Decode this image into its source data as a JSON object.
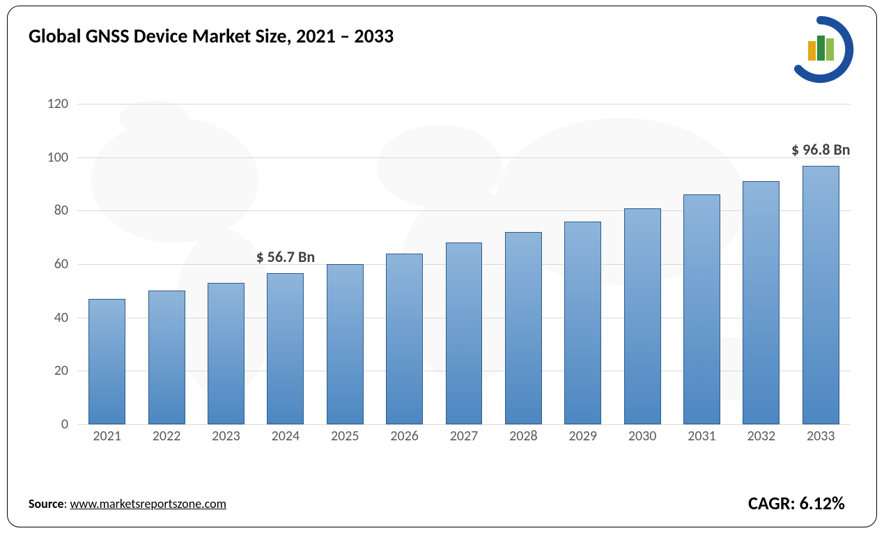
{
  "title": {
    "prefix": "Global ",
    "highlight": "GNSS Device",
    "suffix": " Market Size, 2021 – 2033",
    "fontsize": 28,
    "color": "#000000"
  },
  "logo": {
    "outer_ring_color": "#1b4f9c",
    "bar_colors": [
      "#e6a817",
      "#2e8b3d",
      "#8fbc4f"
    ]
  },
  "chart": {
    "type": "bar",
    "categories": [
      "2021",
      "2022",
      "2023",
      "2024",
      "2025",
      "2026",
      "2027",
      "2028",
      "2029",
      "2030",
      "2031",
      "2032",
      "2033"
    ],
    "values": [
      47,
      50,
      53,
      56.7,
      60,
      64,
      68,
      72,
      76,
      81,
      86,
      91,
      96.8
    ],
    "bar_gradient_top": "#8fb5db",
    "bar_gradient_bottom": "#4d87c1",
    "bar_border_color": "#2e5c8a",
    "bar_width_ratio": 0.62,
    "ylim": [
      0,
      120
    ],
    "ytick_step": 20,
    "yticks": [
      0,
      20,
      40,
      60,
      80,
      100,
      120
    ],
    "grid_color": "#d9d9d9",
    "axis_label_color": "#595959",
    "axis_label_fontsize": 20,
    "background_color": "#ffffff",
    "annotations": [
      {
        "index": 3,
        "text": "$ 56.7 Bn"
      },
      {
        "index": 12,
        "text": "$ 96.8 Bn"
      }
    ],
    "annotation_fontsize": 22,
    "annotation_color": "#404040"
  },
  "source": {
    "label": "Source",
    "sep": ": ",
    "url": "www.marketsreportszone.com",
    "fontsize": 18
  },
  "cagr": {
    "label": "CAGR: ",
    "value": "6.12%",
    "fontsize": 26
  },
  "worldmap": {
    "color": "#cfcfcf",
    "opacity": 0.12
  }
}
